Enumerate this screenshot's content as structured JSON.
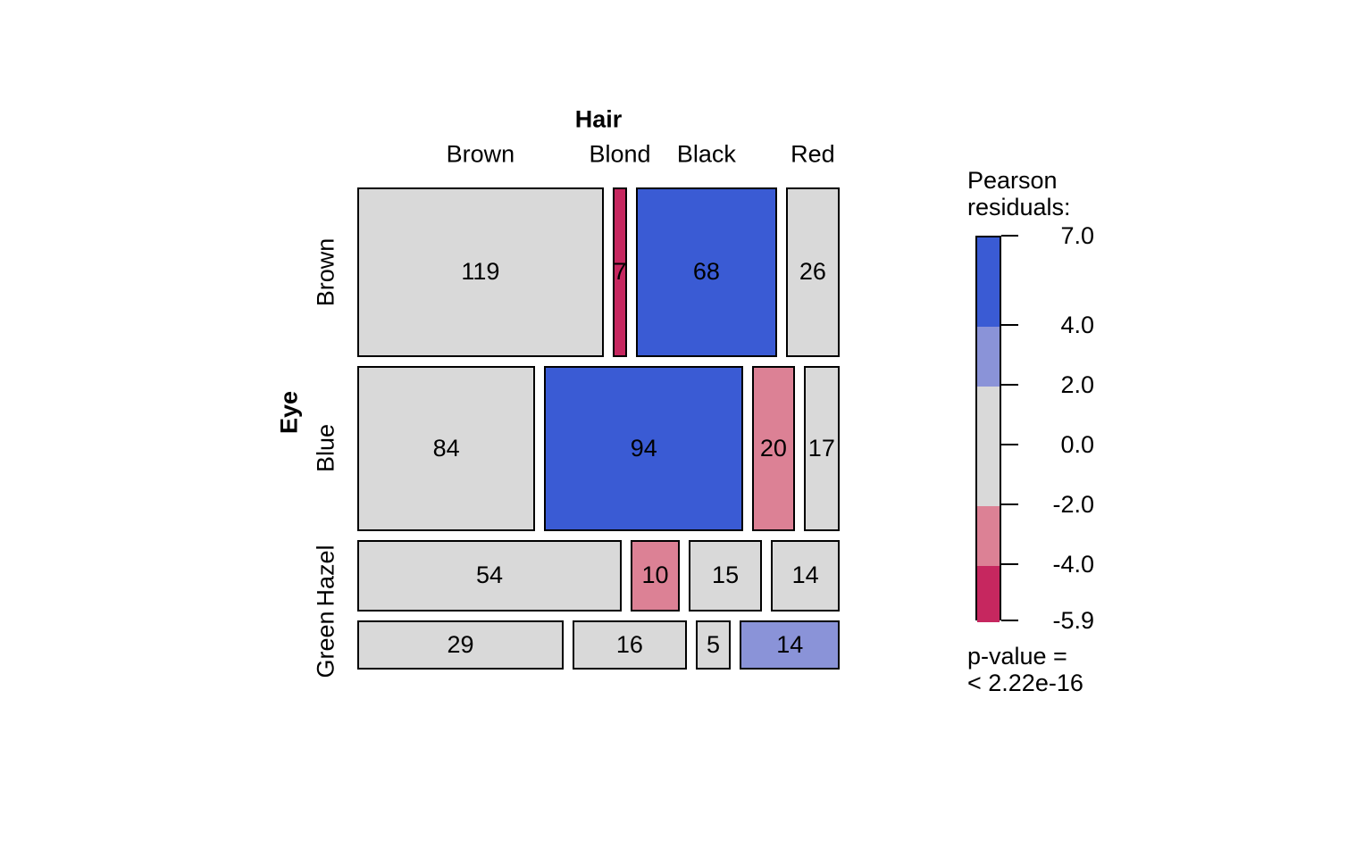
{
  "chart_data": {
    "type": "mosaic",
    "x_label": "Hair",
    "y_label": "Eye",
    "columns": [
      "Brown",
      "Blond",
      "Black",
      "Red"
    ],
    "rows": [
      "Brown",
      "Blue",
      "Hazel",
      "Green"
    ],
    "counts": [
      [
        119,
        7,
        68,
        26
      ],
      [
        84,
        94,
        20,
        17
      ],
      [
        54,
        10,
        15,
        14
      ],
      [
        29,
        16,
        5,
        14
      ]
    ],
    "residual_class": [
      [
        "neutral",
        "strong_neg",
        "strong_pos",
        "neutral"
      ],
      [
        "neutral",
        "strong_pos",
        "mild_neg",
        "neutral"
      ],
      [
        "neutral",
        "mild_neg",
        "neutral",
        "neutral"
      ],
      [
        "neutral",
        "neutral",
        "neutral",
        "mild_pos"
      ]
    ],
    "colors": {
      "strong_pos": "#3A5BD4",
      "mild_pos": "#8A93D8",
      "neutral": "#D9D9D9",
      "mild_neg": "#DC8195",
      "strong_neg": "#C6275F"
    },
    "legend": {
      "title_line1": "Pearson",
      "title_line2": "residuals:",
      "scale_max": 7.0,
      "scale_min": -5.9,
      "ticks": [
        7.0,
        4.0,
        2.0,
        0.0,
        -2.0,
        -4.0,
        -5.9
      ],
      "tick_labels": [
        "7.0",
        "4.0",
        "2.0",
        "0.0",
        "-2.0",
        "-4.0",
        "-5.9"
      ],
      "segments": [
        {
          "from": 7.0,
          "to": 4.0,
          "class": "strong_pos"
        },
        {
          "from": 4.0,
          "to": 2.0,
          "class": "mild_pos"
        },
        {
          "from": 2.0,
          "to": -2.0,
          "class": "neutral"
        },
        {
          "from": -2.0,
          "to": -4.0,
          "class": "mild_neg"
        },
        {
          "from": -4.0,
          "to": -5.9,
          "class": "strong_neg"
        }
      ],
      "p_line1": "p-value =",
      "p_line2": "< 2.22e-16"
    }
  }
}
